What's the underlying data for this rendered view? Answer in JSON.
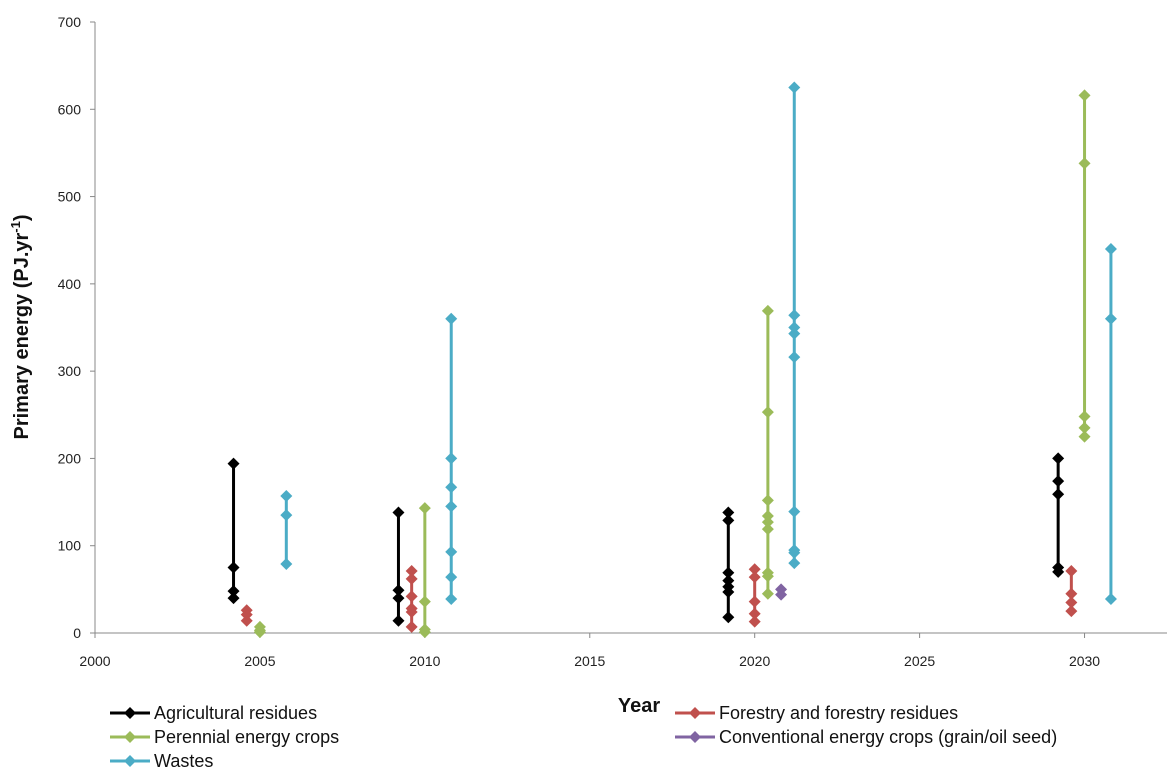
{
  "chart_data": {
    "type": "scatter",
    "title": "",
    "xlabel": "Year",
    "ylabel_main": "Primary energy (PJ.yr",
    "ylabel_sup": "-1",
    "ylabel_close": ")",
    "xlim": [
      2000,
      2032.5
    ],
    "ylim": [
      0,
      700
    ],
    "x_ticks": [
      2000,
      2005,
      2010,
      2015,
      2020,
      2025,
      2030
    ],
    "y_ticks": [
      0,
      100,
      200,
      300,
      400,
      500,
      600,
      700
    ],
    "grid": false,
    "legend_position": "bottom",
    "series": [
      {
        "name": "Agricultural residues",
        "color": "#000000",
        "groups": [
          {
            "x": 2004.2,
            "y": [
              194,
              75,
              48,
              40
            ]
          },
          {
            "x": 2009.2,
            "y": [
              138,
              49,
              40,
              14
            ]
          },
          {
            "x": 2019.2,
            "y": [
              138,
              129,
              69,
              60,
              53,
              47,
              18
            ]
          },
          {
            "x": 2029.2,
            "y": [
              200,
              174,
              159,
              75,
              70
            ]
          }
        ]
      },
      {
        "name": "Forestry and forestry residues",
        "color": "#C0504D",
        "groups": [
          {
            "x": 2004.6,
            "y": [
              26,
              21,
              14
            ]
          },
          {
            "x": 2009.6,
            "y": [
              71,
              62,
              42,
              28,
              24,
              7
            ]
          },
          {
            "x": 2020.0,
            "y": [
              73,
              64,
              36,
              22,
              13
            ]
          },
          {
            "x": 2029.6,
            "y": [
              71,
              45,
              35,
              25
            ]
          }
        ]
      },
      {
        "name": "Perennial energy crops",
        "color": "#9BBB59",
        "groups": [
          {
            "x": 2005.0,
            "y": [
              7,
              3,
              1
            ]
          },
          {
            "x": 2010.0,
            "y": [
              143,
              36,
              4,
              1
            ]
          },
          {
            "x": 2020.4,
            "y": [
              369,
              253,
              152,
              134,
              127,
              119,
              69,
              65,
              45
            ]
          },
          {
            "x": 2030.0,
            "y": [
              616,
              538,
              248,
              235,
              225
            ]
          }
        ]
      },
      {
        "name": "Conventional energy crops (grain/oil seed)",
        "color": "#8064A2",
        "groups": [
          {
            "x": 2020.8,
            "y": [
              50,
              44
            ]
          }
        ]
      },
      {
        "name": "Wastes",
        "color": "#4BACC6",
        "groups": [
          {
            "x": 2005.8,
            "y": [
              157,
              135,
              79
            ]
          },
          {
            "x": 2010.8,
            "y": [
              360,
              200,
              167,
              145,
              93,
              64,
              39
            ]
          },
          {
            "x": 2021.2,
            "y": [
              625,
              364,
              350,
              343,
              316,
              139,
              95,
              92,
              80
            ]
          },
          {
            "x": 2030.8,
            "y": [
              440,
              360,
              39
            ]
          }
        ]
      }
    ]
  },
  "legend": {
    "left": [
      "Agricultural residues",
      "Perennial energy crops",
      "Wastes"
    ],
    "right": [
      "Forestry and forestry residues",
      "Conventional energy crops (grain/oil seed)"
    ]
  }
}
